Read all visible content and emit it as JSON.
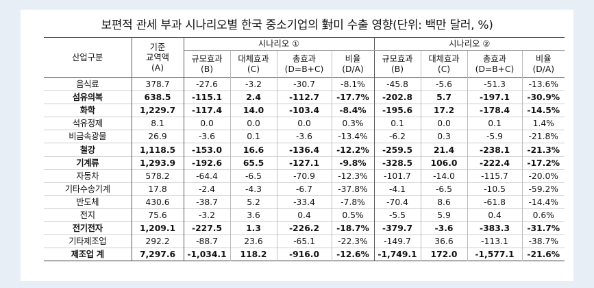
{
  "title": "보편적 관세 부과 시나리오별 한국 중소기업의 對미 수출 영향(단위: 백만 달러, %)",
  "headers": {
    "industry": "산업구분",
    "base": [
      "기준",
      "교역액",
      "(A)"
    ],
    "scenario1": "시나리오 ①",
    "scenario2": "시나리오 ②",
    "scale": [
      "규모효과",
      "(B)"
    ],
    "subst": [
      "대체효과",
      "(C)"
    ],
    "total": [
      "총효과",
      "(D=B+C)"
    ],
    "ratio": [
      "비율",
      "(D/A)"
    ]
  },
  "rows": [
    {
      "name": "음식료",
      "bold": false,
      "base": "378.7",
      "s1": [
        "-27.6",
        "-3.2",
        "-30.7",
        "-8.1%"
      ],
      "s2": [
        "-45.8",
        "-5.6",
        "-51.3",
        "-13.6%"
      ]
    },
    {
      "name": "섬유의복",
      "bold": true,
      "base": "638.5",
      "s1": [
        "-115.1",
        "2.4",
        "-112.7",
        "-17.7%"
      ],
      "s2": [
        "-202.8",
        "5.7",
        "-197.1",
        "-30.9%"
      ]
    },
    {
      "name": "화학",
      "bold": true,
      "base": "1,229.7",
      "s1": [
        "-117.4",
        "14.0",
        "-103.4",
        "-8.4%"
      ],
      "s2": [
        "-195.6",
        "17.2",
        "-178.4",
        "-14.5%"
      ]
    },
    {
      "name": "석유정제",
      "bold": false,
      "base": "8.1",
      "s1": [
        "0.0",
        "0.0",
        "0.0",
        "0.3%"
      ],
      "s2": [
        "0.1",
        "0.0",
        "0.1",
        "1.4%"
      ]
    },
    {
      "name": "비금속광물",
      "bold": false,
      "base": "26.9",
      "s1": [
        "-3.6",
        "0.1",
        "-3.6",
        "-13.4%"
      ],
      "s2": [
        "-6.2",
        "0.3",
        "-5.9",
        "-21.8%"
      ]
    },
    {
      "name": "철강",
      "bold": true,
      "base": "1,118.5",
      "s1": [
        "-153.0",
        "16.6",
        "-136.4",
        "-12.2%"
      ],
      "s2": [
        "-259.5",
        "21.4",
        "-238.1",
        "-21.3%"
      ]
    },
    {
      "name": "기계류",
      "bold": true,
      "base": "1,293.9",
      "s1": [
        "-192.6",
        "65.5",
        "-127.1",
        "-9.8%"
      ],
      "s2": [
        "-328.5",
        "106.0",
        "-222.4",
        "-17.2%"
      ]
    },
    {
      "name": "자동차",
      "bold": false,
      "base": "578.2",
      "s1": [
        "-64.4",
        "-6.5",
        "-70.9",
        "-12.3%"
      ],
      "s2": [
        "-101.7",
        "-14.0",
        "-115.7",
        "-20.0%"
      ]
    },
    {
      "name": "기타수송기계",
      "bold": false,
      "base": "17.8",
      "s1": [
        "-2.4",
        "-4.3",
        "-6.7",
        "-37.8%"
      ],
      "s2": [
        "-4.1",
        "-6.5",
        "-10.5",
        "-59.2%"
      ]
    },
    {
      "name": "반도체",
      "bold": false,
      "base": "430.6",
      "s1": [
        "-38.7",
        "5.2",
        "-33.4",
        "-7.8%"
      ],
      "s2": [
        "-70.4",
        "8.6",
        "-61.8",
        "-14.4%"
      ]
    },
    {
      "name": "전지",
      "bold": false,
      "base": "75.6",
      "s1": [
        "-3.2",
        "3.6",
        "0.4",
        "0.5%"
      ],
      "s2": [
        "-5.5",
        "5.9",
        "0.4",
        "0.6%"
      ]
    },
    {
      "name": "전기전자",
      "bold": true,
      "base": "1,209.1",
      "s1": [
        "-227.5",
        "1.3",
        "-226.2",
        "-18.7%"
      ],
      "s2": [
        "-379.7",
        "-3.6",
        "-383.3",
        "-31.7%"
      ]
    },
    {
      "name": "기타제조업",
      "bold": false,
      "base": "292.2",
      "s1": [
        "-88.7",
        "23.6",
        "-65.1",
        "-22.3%"
      ],
      "s2": [
        "-149.7",
        "36.6",
        "-113.1",
        "-38.7%"
      ]
    },
    {
      "name": "제조업 계",
      "bold": true,
      "base": "7,297.6",
      "s1": [
        "-1,034.1",
        "118.2",
        "-916.0",
        "-12.6%"
      ],
      "s2": [
        "-1,749.1",
        "172.0",
        "-1,577.1",
        "-21.6%"
      ]
    }
  ]
}
